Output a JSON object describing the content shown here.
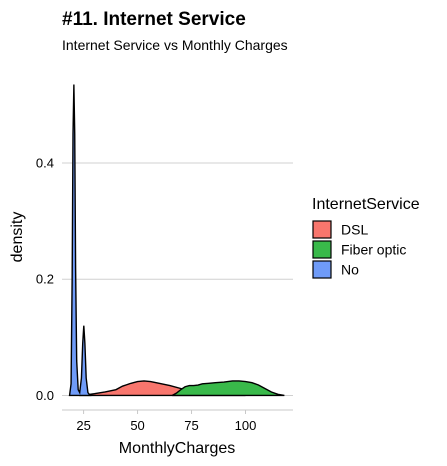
{
  "chart_data": {
    "type": "area",
    "title": "#11. Internet Service",
    "subtitle": "Internet Service vs Monthly Charges",
    "xlabel": "MonthlyCharges",
    "ylabel": "density",
    "xlim": [
      15,
      122
    ],
    "ylim": [
      -0.025,
      0.56
    ],
    "x_ticks": [
      25,
      50,
      75,
      100
    ],
    "y_ticks": [
      0.0,
      0.2,
      0.4
    ],
    "y_tick_labels": [
      "0.0",
      "0.2",
      "0.4"
    ],
    "grid": "horizontal-major",
    "legend": {
      "title": "InternetService",
      "position": "right"
    },
    "series": [
      {
        "name": "DSL",
        "color": "#F8766D",
        "x": [
          23,
          26,
          30,
          35,
          40,
          43,
          47,
          50,
          53,
          56,
          60,
          65,
          70,
          75,
          80,
          85,
          90,
          95,
          100
        ],
        "y": [
          0,
          0.001,
          0.003,
          0.006,
          0.01,
          0.016,
          0.021,
          0.024,
          0.025,
          0.024,
          0.021,
          0.017,
          0.012,
          0.007,
          0.004,
          0.002,
          0.001,
          0.0005,
          0
        ]
      },
      {
        "name": "Fiber optic",
        "color": "#39B94A",
        "x": [
          66,
          68,
          70,
          72,
          74,
          76,
          78,
          80,
          83,
          86,
          90,
          94,
          97,
          100,
          103,
          106,
          109,
          112,
          115,
          118
        ],
        "y": [
          0,
          0.004,
          0.01,
          0.015,
          0.017,
          0.017,
          0.018,
          0.02,
          0.021,
          0.022,
          0.023,
          0.025,
          0.025,
          0.024,
          0.022,
          0.018,
          0.012,
          0.006,
          0.002,
          0
        ]
      },
      {
        "name": "No",
        "color": "#6F9BF8",
        "x": [
          18.5,
          19.2,
          19.7,
          20.1,
          20.5,
          20.9,
          21.3,
          21.8,
          22.5,
          23.2,
          24.0,
          24.6,
          25.1,
          25.6,
          26.2,
          27.0,
          28.0
        ],
        "y": [
          0,
          0.02,
          0.2,
          0.45,
          0.535,
          0.45,
          0.22,
          0.06,
          0.01,
          0.005,
          0.03,
          0.09,
          0.12,
          0.09,
          0.03,
          0.005,
          0
        ]
      }
    ]
  }
}
